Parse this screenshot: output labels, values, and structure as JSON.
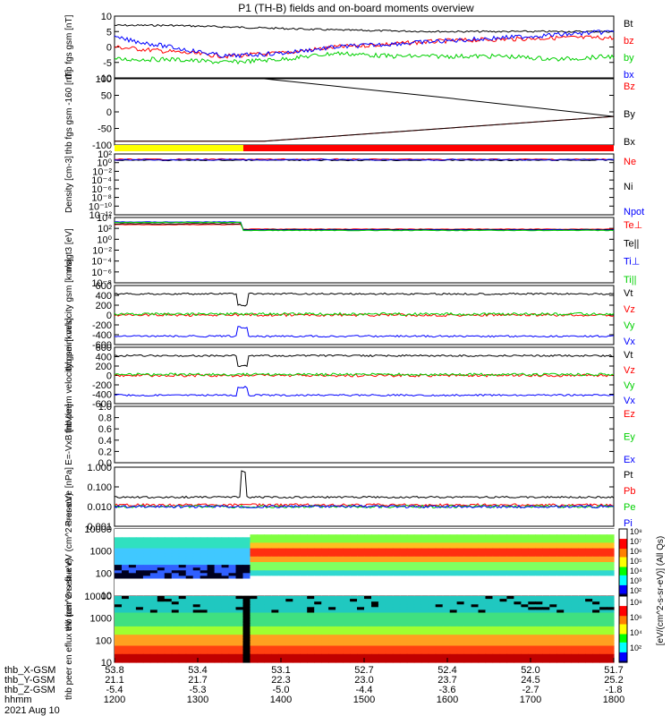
{
  "title": "P1 (TH-B) fields and on-board moments overview",
  "date_label": "2021 Aug 10",
  "chart_data": [
    {
      "type": "line",
      "ylabel": "thb fgs gsm [nT]",
      "yticks": [
        "10",
        "5",
        "0",
        "-5",
        "-10"
      ],
      "ylim": [
        -10,
        10
      ],
      "series": [
        {
          "name": "Bt",
          "color": "#000000",
          "values": [
            7,
            7,
            6.5,
            6,
            5.5,
            5.2,
            5,
            5,
            5,
            5
          ]
        },
        {
          "name": "bz",
          "color": "#ff0000",
          "values": [
            0,
            -1.5,
            -3,
            -2,
            0,
            1,
            2,
            2.5,
            3,
            3
          ]
        },
        {
          "name": "by",
          "color": "#00d000",
          "values": [
            -4,
            -4,
            -5,
            -4,
            -2,
            -3,
            -3,
            -3,
            -4,
            -3
          ]
        },
        {
          "name": "bx",
          "color": "#0000ff",
          "values": [
            3,
            0,
            -3,
            -2,
            0,
            1,
            2,
            3,
            4,
            5
          ]
        }
      ]
    },
    {
      "type": "line",
      "ylabel": "thb fgs gsm -160 [nT]",
      "yticks": [
        "100",
        "50",
        "0",
        "-50",
        "-100"
      ],
      "ylim": [
        -125,
        100
      ],
      "series": [
        {
          "name": "Bz",
          "color": "#ff0000",
          "values": [
            -112,
            -112,
            -70,
            -28
          ]
        },
        {
          "name": "By",
          "color": "#000000",
          "values": [
            100,
            100,
            38,
            -28
          ]
        },
        {
          "name": "Bx",
          "color": "#000000",
          "values": [
            -112,
            -112,
            -70,
            -28
          ]
        }
      ]
    },
    {
      "type": "line",
      "ylabel": "Density [cm-3]",
      "yscale": "log",
      "yticks": [
        "10²",
        "10⁰",
        "10⁻²",
        "10⁻⁴",
        "10⁻⁶",
        "10⁻⁸",
        "10⁻¹⁰",
        "10⁻¹²"
      ],
      "series": [
        {
          "name": "Ne",
          "color": "#ff0000",
          "values": [
            1,
            1
          ]
        },
        {
          "name": "Ni",
          "color": "#000000",
          "values": [
            0.9,
            0.9
          ]
        },
        {
          "name": "Npot",
          "color": "#0000ff",
          "values": [
            1,
            1
          ]
        }
      ]
    },
    {
      "type": "line",
      "ylabel": "magt3 [eV]",
      "yscale": "log",
      "yticks": [
        "10⁴",
        "10²",
        "10⁰",
        "10⁻²",
        "10⁻⁴",
        "10⁻⁶",
        "10⁻⁸"
      ],
      "series": [
        {
          "name": "Te⊥",
          "color": "#ff0000"
        },
        {
          "name": "Te||",
          "color": "#000000"
        },
        {
          "name": "Ti⊥",
          "color": "#0000ff"
        },
        {
          "name": "Ti||",
          "color": "#00d000"
        }
      ]
    },
    {
      "type": "line",
      "ylabel": "thb peim velocity gsm [km/s]",
      "yticks": [
        "600",
        "400",
        "200",
        "0",
        "-200",
        "-400",
        "-600"
      ],
      "ylim": [
        -600,
        600
      ],
      "series": [
        {
          "name": "Vt",
          "color": "#000000",
          "values": [
            430,
            430
          ]
        },
        {
          "name": "Vz",
          "color": "#ff0000",
          "values": [
            0,
            0
          ]
        },
        {
          "name": "Vy",
          "color": "#00d000",
          "values": [
            20,
            20
          ]
        },
        {
          "name": "Vx",
          "color": "#0000ff",
          "values": [
            -430,
            -430
          ]
        }
      ]
    },
    {
      "type": "line",
      "ylabel": "thb peem velocity gsm [km/s]",
      "yticks": [
        "600",
        "400",
        "200",
        "0",
        "-200",
        "-400",
        "-600"
      ],
      "ylim": [
        -600,
        600
      ],
      "series": [
        {
          "name": "Vt",
          "color": "#000000",
          "values": [
            420,
            420
          ]
        },
        {
          "name": "Vz",
          "color": "#ff0000",
          "values": [
            0,
            0
          ]
        },
        {
          "name": "Vy",
          "color": "#00d000",
          "values": [
            20,
            20
          ]
        },
        {
          "name": "Vx",
          "color": "#0000ff",
          "values": [
            -420,
            -420
          ]
        }
      ]
    },
    {
      "type": "line",
      "ylabel": "E=-VxB [mV/m]",
      "yticks": [
        "1.0",
        "0.8",
        "0.6",
        "0.4",
        "0.2",
        "0.0"
      ],
      "ylim": [
        0,
        1
      ],
      "series": [
        {
          "name": "Ez",
          "color": "#ff0000"
        },
        {
          "name": "Ey",
          "color": "#00d000"
        },
        {
          "name": "Ex",
          "color": "#0000ff"
        }
      ]
    },
    {
      "type": "line",
      "ylabel": "Pressure [nPa]",
      "yscale": "log",
      "yticks": [
        "1.000",
        "0.100",
        "0.010",
        "0.001"
      ],
      "series": [
        {
          "name": "Pt",
          "color": "#000000",
          "values": [
            0.03,
            0.03
          ]
        },
        {
          "name": "Pb",
          "color": "#ff0000",
          "values": [
            0.012,
            0.012
          ]
        },
        {
          "name": "Pe",
          "color": "#00d000",
          "values": [
            0.01,
            0.01
          ]
        },
        {
          "name": "Pi",
          "color": "#0000ff",
          "values": [
            0.01,
            0.01
          ]
        }
      ]
    },
    {
      "type": "heatmap",
      "ylabel": "thb peir en eflux eV (cm^2-s-sr-eV)",
      "yscale": "log",
      "yticks": [
        "10000",
        "1000",
        "100",
        "10"
      ]
    },
    {
      "type": "heatmap",
      "ylabel": "thb peer en eflux eV (cm^2-s-sr-eV)",
      "yscale": "log",
      "yticks": [
        "10000",
        "1000",
        "100",
        "10"
      ]
    }
  ],
  "mode_bar": {
    "colors": [
      "#ffff00",
      "#ff0000"
    ]
  },
  "colorbar": {
    "label": "[eV/(cm^2-s-sr-eV)] (All Qs)",
    "ticks": [
      "10⁸",
      "10⁷",
      "10⁶",
      "10⁵",
      "10⁴",
      "10³",
      "10²",
      "10⁸",
      "10⁶",
      "10⁴",
      "10²"
    ]
  },
  "xaxis": {
    "rows": [
      {
        "label": "thb_X-GSM",
        "values": [
          "53.8",
          "53.4",
          "53.1",
          "52.7",
          "52.4",
          "52.0",
          "51.7"
        ]
      },
      {
        "label": "thb_Y-GSM",
        "values": [
          "21.1",
          "21.7",
          "22.3",
          "23.0",
          "23.7",
          "24.5",
          "25.2"
        ]
      },
      {
        "label": "thb_Z-GSM",
        "values": [
          "-5.4",
          "-5.3",
          "-5.0",
          "-4.4",
          "-3.6",
          "-2.7",
          "-1.8"
        ]
      },
      {
        "label": "hhmm",
        "values": [
          "1200",
          "1300",
          "1400",
          "1500",
          "1600",
          "1700",
          "1800"
        ]
      }
    ]
  }
}
